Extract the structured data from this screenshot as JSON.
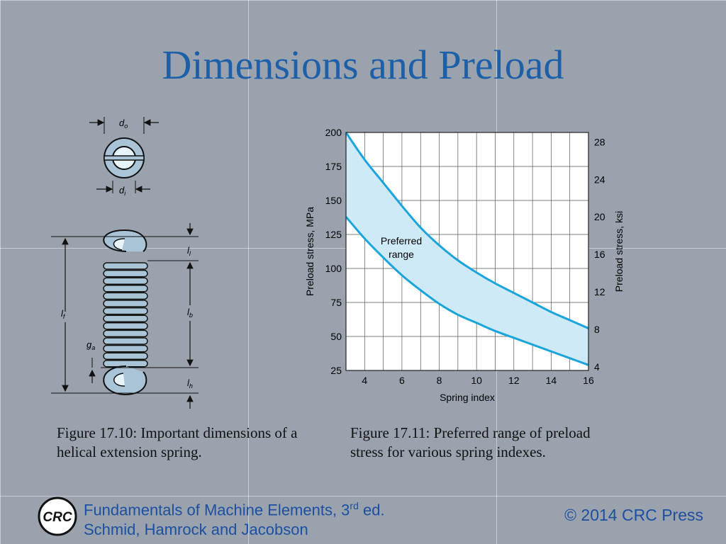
{
  "title": "Dimensions and Preload",
  "figure1": {
    "labels": {
      "do": "d",
      "do_sub": "o",
      "di": "d",
      "di_sub": "i",
      "ll": "l",
      "ll_sub": "l",
      "lb": "l",
      "lb_sub": "b",
      "lf": "l",
      "lf_sub": "f",
      "ga": "g",
      "ga_sub": "a",
      "lh": "l",
      "lh_sub": "h"
    },
    "caption": "Figure 17.10:  Important dimensions of a helical extension spring."
  },
  "chart_data": {
    "type": "area",
    "xlabel": "Spring index",
    "ylabel": "Preload stress, MPa",
    "ylabel_right": "Preload stress, ksi",
    "xlim": [
      3,
      16
    ],
    "ylim": [
      25,
      200
    ],
    "xticks": [
      4,
      6,
      8,
      10,
      12,
      14,
      16
    ],
    "yticks": [
      25,
      50,
      75,
      100,
      125,
      150,
      175,
      200
    ],
    "y2ticks": [
      4,
      8,
      12,
      16,
      20,
      24,
      28
    ],
    "grid": true,
    "annotation": "Preferred range",
    "series": [
      {
        "x": [
          3,
          4,
          5,
          6,
          7,
          8,
          9,
          10,
          11,
          12,
          13,
          14,
          15,
          16
        ],
        "values": [
          200,
          180,
          163,
          146,
          130,
          117,
          106,
          97,
          89,
          82,
          75,
          68,
          62,
          56
        ]
      },
      {
        "x": [
          3,
          4,
          5,
          6,
          7,
          8,
          9,
          10,
          11,
          12,
          13,
          14,
          15,
          16
        ],
        "values": [
          138,
          122,
          108,
          95,
          84,
          74,
          66,
          60,
          54,
          49,
          44,
          39,
          34,
          29
        ]
      }
    ],
    "colors": {
      "line": "#1aa4dc",
      "fill": "#cfeaf7",
      "grid": "#444444"
    }
  },
  "figure2": {
    "caption": "Figure 17.11:  Preferred range of preload stress for various spring indexes."
  },
  "footer": {
    "logo_text": "CRC",
    "line1": "Fundamentals of Machine Elements, 3",
    "line1_sup": "rd",
    "line1_end": " ed.",
    "line2": "Schmid, Hamrock and Jacobson",
    "copyright": "© 2014 CRC Press"
  }
}
